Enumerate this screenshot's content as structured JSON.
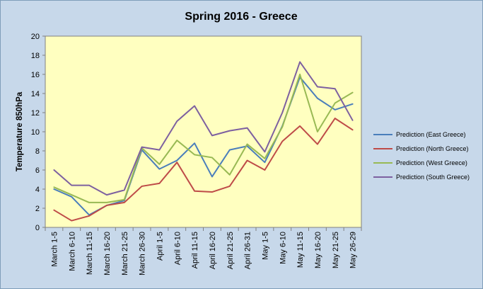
{
  "chart_data": {
    "type": "line",
    "title": "Spring 2016 - Greece",
    "ylabel": "Temperature 850hPa",
    "xlabel": "",
    "ylim": [
      0,
      20
    ],
    "ytick_step": 2,
    "grid": false,
    "legend_position": "right",
    "categories": [
      "March 1-5",
      "March 6-10",
      "March 11-15",
      "March 16-20",
      "March 21-25",
      "March 26-30",
      "April 1-5",
      "April 6-10",
      "April 11-15",
      "April 16-20",
      "April 21-25",
      "April 26-31",
      "May 1-5",
      "May 6-10",
      "May 11-15",
      "May 16-20",
      "May 21-25",
      "May 26-29"
    ],
    "series": [
      {
        "name": "Prediction (East Greece)",
        "color": "#4a7ebb",
        "values": [
          4.0,
          3.2,
          1.3,
          2.3,
          2.8,
          8.1,
          6.1,
          7.0,
          8.8,
          5.3,
          8.1,
          8.5,
          6.8,
          10.6,
          15.7,
          13.5,
          12.3,
          12.9
        ]
      },
      {
        "name": "Prediction (North Greece)",
        "color": "#be4b48",
        "values": [
          1.8,
          0.7,
          1.2,
          2.3,
          2.6,
          4.3,
          4.6,
          6.8,
          3.8,
          3.7,
          4.3,
          7.0,
          6.0,
          9.0,
          10.6,
          8.7,
          11.4,
          10.2
        ]
      },
      {
        "name": "Prediction (West Greece)",
        "color": "#98b954",
        "values": [
          4.2,
          3.4,
          2.6,
          2.6,
          2.9,
          8.3,
          6.6,
          9.1,
          7.6,
          7.3,
          5.5,
          8.7,
          7.2,
          10.5,
          16.0,
          10.0,
          13.0,
          14.1
        ]
      },
      {
        "name": "Prediction (South Greece)",
        "color": "#7d60a0",
        "values": [
          6.0,
          4.4,
          4.4,
          3.4,
          3.9,
          8.4,
          8.1,
          11.1,
          12.7,
          9.6,
          10.1,
          10.4,
          7.9,
          12.0,
          17.3,
          14.7,
          14.5,
          11.2
        ]
      }
    ]
  }
}
